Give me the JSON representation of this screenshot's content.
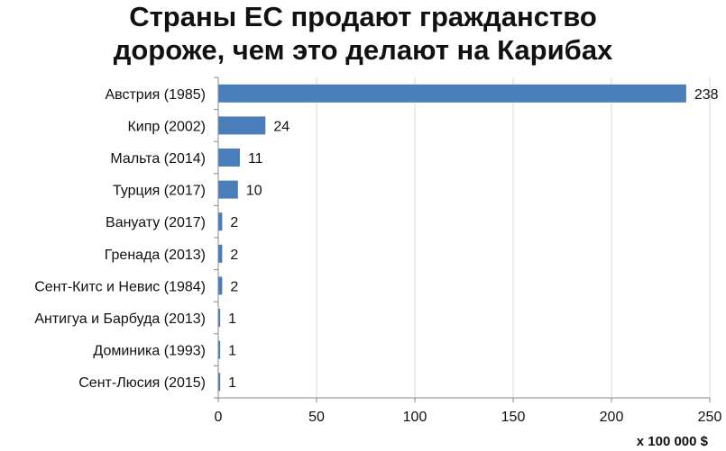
{
  "chart_data": {
    "type": "bar",
    "orientation": "horizontal",
    "title": "Страны ЕС продают гражданство дороже, чем это делают на Карибах",
    "title_lines": [
      "Страны ЕС продают гражданство",
      "дороже, чем это делают на Карибах"
    ],
    "categories": [
      "Австрия (1985)",
      "Кипр (2002)",
      "Мальта (2014)",
      "Турция (2017)",
      "Вануату (2017)",
      "Гренада (2013)",
      "Сент-Китс и Невис (1984)",
      "Антигуа и Барбуда (2013)",
      "Доминика (1993)",
      "Сент-Люсия (2015)"
    ],
    "values": [
      238,
      24,
      11,
      10,
      2,
      2,
      2,
      1,
      1,
      1
    ],
    "value_labels": [
      "238",
      "24",
      "11",
      "10",
      "2",
      "2",
      "2",
      "1",
      "1",
      "1"
    ],
    "xlim": [
      0,
      250
    ],
    "xticks": [
      0,
      50,
      100,
      150,
      200,
      250
    ],
    "xtick_labels": [
      "0",
      "50",
      "100",
      "150",
      "200",
      "250"
    ],
    "xlabel": "x 100 000 $",
    "ylabel": "",
    "grid": "vertical",
    "legend": "none",
    "bar_color": "#4a7ebb",
    "grid_color": "#d9d9d9",
    "axis_color": "#888888"
  }
}
